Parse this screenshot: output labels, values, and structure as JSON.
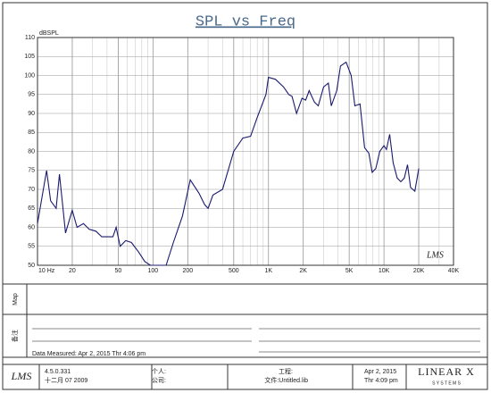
{
  "chart_data": {
    "type": "line",
    "title": "SPL vs Freq",
    "ylabel": "dBSPL",
    "logo": "LMS",
    "xlog": true,
    "grid": true,
    "xlim": [
      10,
      40000
    ],
    "ylim": [
      50,
      110
    ],
    "xticks": [
      {
        "value": 10,
        "label": "10 Hz"
      },
      20,
      50,
      100,
      200,
      500,
      {
        "value": 1000,
        "label": "1K"
      },
      {
        "value": 2000,
        "label": "2K"
      },
      {
        "value": 5000,
        "label": "5K"
      },
      {
        "value": 10000,
        "label": "10K"
      },
      {
        "value": 20000,
        "label": "20K"
      },
      {
        "value": 40000,
        "label": "40K"
      }
    ],
    "yticks": [
      50,
      55,
      60,
      65,
      70,
      75,
      80,
      85,
      90,
      95,
      100,
      105,
      110
    ],
    "series": [
      {
        "color": "#1a1a6e",
        "x": [
          10,
          12,
          13,
          14.5,
          15.5,
          17.5,
          20,
          22,
          25,
          28,
          32,
          36,
          40,
          45,
          48,
          52,
          58,
          65,
          75,
          85,
          95,
          110,
          130,
          150,
          180,
          210,
          250,
          280,
          300,
          330,
          400,
          500,
          600,
          700,
          800,
          950,
          1000,
          1150,
          1350,
          1500,
          1600,
          1750,
          1950,
          2100,
          2250,
          2500,
          2700,
          3000,
          3300,
          3500,
          3900,
          4200,
          4700,
          5200,
          5600,
          6200,
          6800,
          7400,
          7900,
          8500,
          9200,
          10000,
          10500,
          11200,
          12000,
          13000,
          14000,
          15000,
          16000,
          17000,
          18500,
          20000
        ],
        "values": [
          61,
          75,
          67,
          65,
          74,
          58.5,
          64.5,
          60,
          61,
          59.5,
          59,
          57.5,
          57.5,
          57.5,
          60,
          55,
          56.5,
          56,
          53.5,
          51,
          50,
          50,
          50,
          56,
          63,
          72.5,
          69,
          66,
          65,
          68.5,
          70,
          80,
          83.5,
          84,
          89,
          95,
          99.5,
          99,
          97,
          95,
          94.5,
          90,
          94,
          93.5,
          96,
          93,
          92,
          97,
          98,
          92,
          96,
          102.5,
          103.5,
          100,
          92,
          92.5,
          81,
          79.5,
          74.5,
          75.5,
          80,
          81.5,
          80.5,
          84.5,
          77,
          73,
          72,
          73,
          76.5,
          70.5,
          69.5,
          75.5
        ]
      }
    ]
  },
  "report": {
    "map_label": "Map",
    "notes_label": "备注",
    "measured": "Data Measured: Apr 2, 2015  Thr  4:06 pm"
  },
  "footer": {
    "logo": "LMS",
    "version": "4.5.0.331",
    "build_date": "十二月 07 2009",
    "person": "个人:",
    "company": "公司:",
    "project": "工程:",
    "file": "文件:Untitled.lib",
    "date": "Apr  2, 2015",
    "time": "Thr  4:09 pm",
    "brand": "LINEAR X",
    "brand_sub": "S Y S T E M S"
  }
}
